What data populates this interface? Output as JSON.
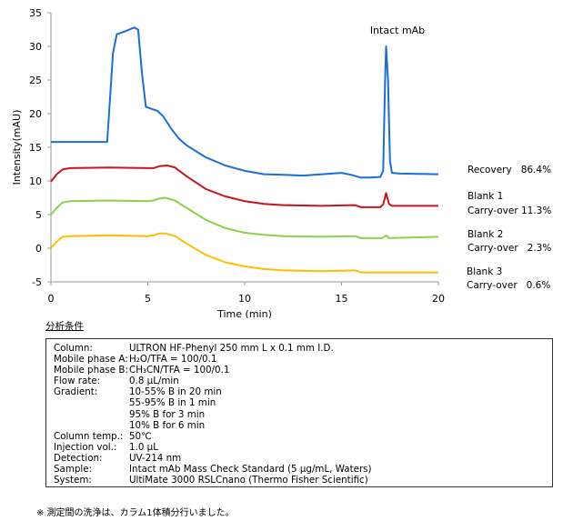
{
  "chart_data": {
    "type": "line",
    "xlabel": "Time (min)",
    "ylabel": "Intensity(mAU)",
    "xlim": [
      0,
      20
    ],
    "ylim": [
      -5,
      35
    ],
    "xticks": [
      0,
      5,
      10,
      15,
      20
    ],
    "yticks": [
      35,
      30,
      25,
      20,
      15,
      10,
      5,
      0,
      -5
    ],
    "grid": false,
    "annotation": "Intact mAb",
    "series": [
      {
        "name": "Recovery",
        "label": "Recovery   86.4%",
        "color": "#1a6fd6",
        "points": [
          [
            0,
            15.8
          ],
          [
            2.9,
            15.8
          ],
          [
            3.0,
            20
          ],
          [
            3.2,
            29
          ],
          [
            3.4,
            31.8
          ],
          [
            3.8,
            32.2
          ],
          [
            4.3,
            32.8
          ],
          [
            4.5,
            32.5
          ],
          [
            4.7,
            26
          ],
          [
            4.9,
            21
          ],
          [
            5.2,
            20.7
          ],
          [
            5.5,
            20.4
          ],
          [
            5.8,
            19.6
          ],
          [
            6.2,
            17.8
          ],
          [
            6.6,
            16.3
          ],
          [
            7,
            15.3
          ],
          [
            8,
            13.5
          ],
          [
            9,
            12.3
          ],
          [
            10,
            11.5
          ],
          [
            11,
            11.0
          ],
          [
            12,
            10.9
          ],
          [
            13,
            10.8
          ],
          [
            14,
            11.0
          ],
          [
            15,
            11.2
          ],
          [
            15.5,
            10.9
          ],
          [
            16,
            10.5
          ],
          [
            16.5,
            10.5
          ],
          [
            17.0,
            10.6
          ],
          [
            17.15,
            11.5
          ],
          [
            17.25,
            25
          ],
          [
            17.3,
            30
          ],
          [
            17.4,
            25
          ],
          [
            17.5,
            13
          ],
          [
            17.6,
            11.2
          ],
          [
            18,
            11.1
          ],
          [
            20,
            11.0
          ]
        ]
      },
      {
        "name": "Blank 1",
        "label": "Carry-over 11.3%",
        "color": "#c8141c",
        "points": [
          [
            0,
            9.9
          ],
          [
            0.3,
            11
          ],
          [
            0.6,
            11.7
          ],
          [
            1,
            11.9
          ],
          [
            3,
            12
          ],
          [
            5,
            11.9
          ],
          [
            5.3,
            11.9
          ],
          [
            5.6,
            12.2
          ],
          [
            6,
            12.3
          ],
          [
            6.4,
            12
          ],
          [
            7,
            10.7
          ],
          [
            8,
            8.8
          ],
          [
            9,
            7.7
          ],
          [
            10,
            7.0
          ],
          [
            11,
            6.6
          ],
          [
            12,
            6.4
          ],
          [
            14,
            6.3
          ],
          [
            15.7,
            6.4
          ],
          [
            16,
            6.1
          ],
          [
            17,
            6.1
          ],
          [
            17.15,
            6.5
          ],
          [
            17.3,
            8.2
          ],
          [
            17.45,
            6.6
          ],
          [
            17.6,
            6.3
          ],
          [
            20,
            6.3
          ]
        ]
      },
      {
        "name": "Blank 2",
        "label": "Carry-over   2.3%",
        "color": "#8cd14a",
        "points": [
          [
            0,
            5
          ],
          [
            0.3,
            6
          ],
          [
            0.6,
            6.8
          ],
          [
            1,
            7
          ],
          [
            3,
            7.1
          ],
          [
            5,
            7
          ],
          [
            5.3,
            7.1
          ],
          [
            5.6,
            7.4
          ],
          [
            5.9,
            7.5
          ],
          [
            6.4,
            7.1
          ],
          [
            7,
            6.0
          ],
          [
            8,
            4.2
          ],
          [
            9,
            3.0
          ],
          [
            10,
            2.3
          ],
          [
            11,
            2.0
          ],
          [
            12,
            1.8
          ],
          [
            14,
            1.7
          ],
          [
            15.7,
            1.8
          ],
          [
            16,
            1.5
          ],
          [
            17.1,
            1.5
          ],
          [
            17.3,
            1.9
          ],
          [
            17.45,
            1.5
          ],
          [
            20,
            1.7
          ]
        ]
      },
      {
        "name": "Blank 3",
        "label": "Carry-over   0.6%",
        "color": "#ffbe00",
        "points": [
          [
            0,
            0
          ],
          [
            0.3,
            1
          ],
          [
            0.6,
            1.7
          ],
          [
            1,
            1.8
          ],
          [
            3,
            1.9
          ],
          [
            5,
            1.8
          ],
          [
            5.3,
            1.9
          ],
          [
            5.6,
            2.2
          ],
          [
            5.9,
            2.2
          ],
          [
            6.4,
            1.8
          ],
          [
            7,
            0.7
          ],
          [
            8,
            -1.0
          ],
          [
            9,
            -2.1
          ],
          [
            10,
            -2.7
          ],
          [
            11,
            -3.1
          ],
          [
            12,
            -3.3
          ],
          [
            14,
            -3.4
          ],
          [
            15.7,
            -3.3
          ],
          [
            16,
            -3.6
          ],
          [
            20,
            -3.6
          ]
        ]
      }
    ]
  },
  "conditions": {
    "title": "分析条件",
    "rows": [
      {
        "k": "Column:",
        "v": "ULTRON HF-Phenyl 250 mm L x 0.1 mm I.D."
      },
      {
        "k": "Mobile phase A:",
        "v": "H₂O/TFA = 100/0.1"
      },
      {
        "k": "Mobile phase B:",
        "v": "CH₃CN/TFA = 100/0.1"
      },
      {
        "k": "Flow rate:",
        "v": "0.8 µL/min"
      },
      {
        "k": "Gradient:",
        "v": "10-55% B in 20 min"
      },
      {
        "k": "",
        "v": "55-95% B in 1 min"
      },
      {
        "k": "",
        "v": "95% B for 3 min"
      },
      {
        "k": "",
        "v": "10% B for 6 min"
      },
      {
        "k": "Column temp.:",
        "v": "50℃"
      },
      {
        "k": "Injection vol.:",
        "v": "1.0 µL"
      },
      {
        "k": "Detection:",
        "v": "UV-214 nm"
      },
      {
        "k": "Sample:",
        "v": "Intact mAb Mass Check Standard (5 µg/mL, Waters)"
      },
      {
        "k": "System:",
        "v": "UltiMate 3000 RSLCnano  (Thermo Fisher Scientific)"
      }
    ]
  },
  "note": "※ 測定間の洗浄は、カラム1体積分行いました。"
}
